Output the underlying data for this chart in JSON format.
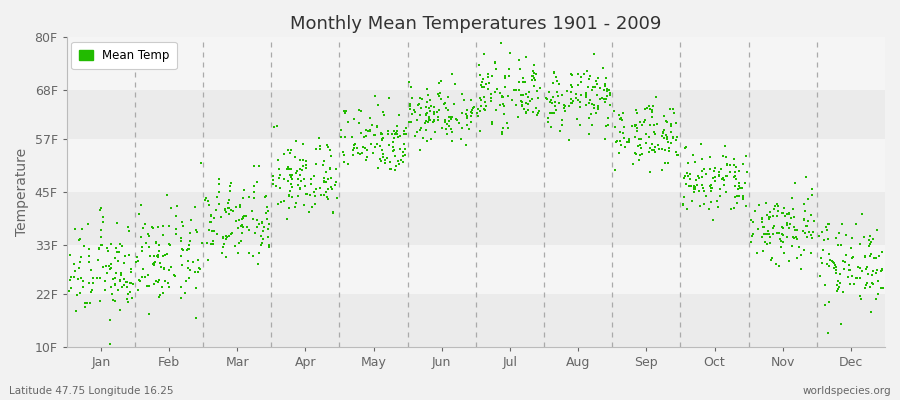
{
  "title": "Monthly Mean Temperatures 1901 - 2009",
  "ylabel": "Temperature",
  "xlabel_bottom_left": "Latitude 47.75 Longitude 16.25",
  "xlabel_bottom_right": "worldspecies.org",
  "marker_color": "#22bb00",
  "background_color": "#f2f2f2",
  "plot_bg_stripes": [
    "#ebebeb",
    "#f5f5f5"
  ],
  "ytick_labels": [
    "10F",
    "22F",
    "33F",
    "45F",
    "57F",
    "68F",
    "80F"
  ],
  "ytick_values": [
    10,
    22,
    33,
    45,
    57,
    68,
    80
  ],
  "ylim": [
    10,
    80
  ],
  "months": [
    "Jan",
    "Feb",
    "Mar",
    "Apr",
    "May",
    "Jun",
    "Jul",
    "Aug",
    "Sep",
    "Oct",
    "Nov",
    "Dec"
  ],
  "num_years": 109,
  "year_start": 1901,
  "year_end": 2009,
  "mean_temps_f": [
    27,
    30,
    38,
    48,
    57,
    63,
    67,
    66,
    58,
    47,
    37,
    29
  ],
  "std_temps_f": [
    5.5,
    5.5,
    5,
    4.5,
    4,
    3.5,
    3.5,
    3.5,
    3.5,
    4,
    4.5,
    5
  ],
  "legend_label": "Mean Temp",
  "marker_size": 3,
  "dpi": 100,
  "figsize": [
    9.0,
    4.0
  ]
}
